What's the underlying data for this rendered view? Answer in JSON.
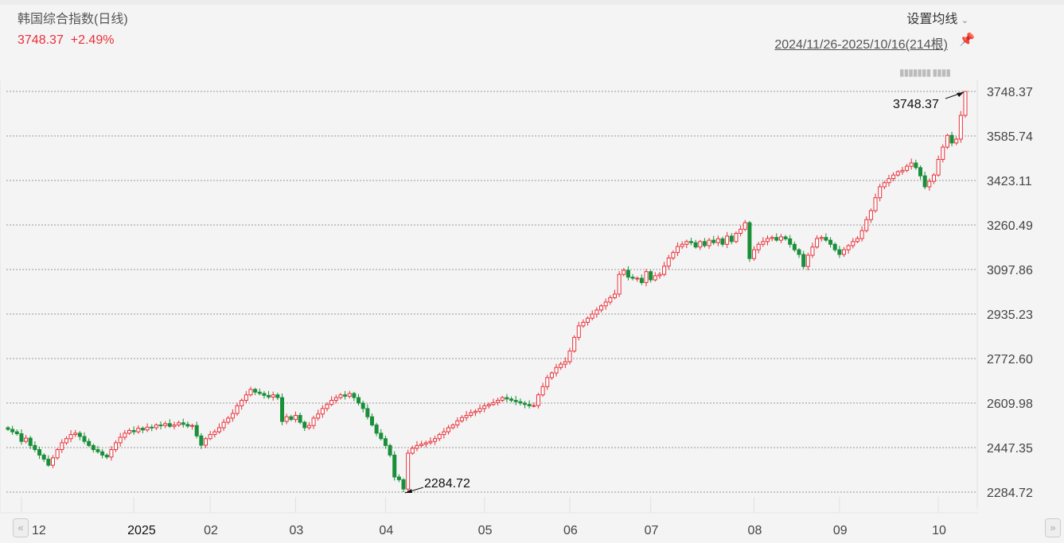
{
  "header": {
    "title": "韩国综合指数(日线)",
    "price": "3748.37",
    "change": "+2.49%",
    "ma_setting": "设置均线",
    "chevron_icon": "chevron-down-icon",
    "range": "2024/11/26-2025/10/16(214根)",
    "pin_icon": "pin-icon"
  },
  "colors": {
    "up": "#e8303a",
    "down": "#1a8f3a",
    "background": "#f4f4f4"
  },
  "nav": {
    "prev": "«",
    "next": "»"
  },
  "chart_data": {
    "type": "candlestick",
    "title": "韩国综合指数(日线)",
    "y_ticks": [
      "3748.37",
      "3585.74",
      "3423.11",
      "3260.49",
      "3097.86",
      "2935.23",
      "2772.60",
      "2609.98",
      "2447.35",
      "2284.72"
    ],
    "ylim": [
      2284.72,
      3748.37
    ],
    "x_ticks": [
      {
        "label": "12",
        "index": 3
      },
      {
        "label": "2025",
        "index": 28
      },
      {
        "label": "02",
        "index": 45
      },
      {
        "label": "03",
        "index": 64
      },
      {
        "label": "04",
        "index": 84
      },
      {
        "label": "05",
        "index": 106
      },
      {
        "label": "06",
        "index": 125
      },
      {
        "label": "07",
        "index": 143
      },
      {
        "label": "08",
        "index": 166
      },
      {
        "label": "09",
        "index": 185
      },
      {
        "label": "10",
        "index": 207
      }
    ],
    "grid": true,
    "annotations": [
      {
        "label": "3748.37",
        "index": 213,
        "value": 3748.37
      },
      {
        "label": "2284.72",
        "index": 88,
        "value": 2284.72
      }
    ],
    "close": [
      2514,
      2505,
      2498,
      2470,
      2482,
      2455,
      2440,
      2420,
      2405,
      2383,
      2410,
      2440,
      2465,
      2480,
      2495,
      2500,
      2488,
      2470,
      2455,
      2440,
      2432,
      2420,
      2413,
      2440,
      2465,
      2485,
      2500,
      2510,
      2505,
      2518,
      2512,
      2522,
      2520,
      2530,
      2528,
      2535,
      2525,
      2530,
      2538,
      2532,
      2526,
      2528,
      2490,
      2456,
      2480,
      2495,
      2505,
      2520,
      2540,
      2555,
      2572,
      2600,
      2620,
      2640,
      2660,
      2650,
      2645,
      2638,
      2632,
      2640,
      2630,
      2543,
      2560,
      2550,
      2565,
      2540,
      2520,
      2528,
      2555,
      2570,
      2590,
      2605,
      2620,
      2630,
      2640,
      2635,
      2645,
      2630,
      2610,
      2590,
      2560,
      2530,
      2500,
      2480,
      2455,
      2420,
      2340,
      2330,
      2296,
      2427,
      2445,
      2455,
      2460,
      2465,
      2470,
      2480,
      2495,
      2505,
      2520,
      2530,
      2545,
      2557,
      2565,
      2575,
      2580,
      2590,
      2600,
      2605,
      2612,
      2620,
      2630,
      2625,
      2620,
      2615,
      2610,
      2605,
      2600,
      2601,
      2640,
      2670,
      2703,
      2720,
      2740,
      2752,
      2761,
      2800,
      2850,
      2892,
      2905,
      2920,
      2935,
      2950,
      2965,
      2979,
      2995,
      3008,
      3080,
      3095,
      3070,
      3066,
      3066,
      3050,
      3090,
      3060,
      3075,
      3080,
      3110,
      3140,
      3160,
      3182,
      3190,
      3200,
      3196,
      3180,
      3200,
      3185,
      3205,
      3196,
      3210,
      3190,
      3220,
      3200,
      3230,
      3245,
      3269,
      3138,
      3170,
      3190,
      3200,
      3211,
      3215,
      3205,
      3217,
      3210,
      3190,
      3170,
      3153,
      3109,
      3150,
      3180,
      3211,
      3215,
      3205,
      3190,
      3170,
      3153,
      3170,
      3185,
      3200,
      3211,
      3240,
      3280,
      3313,
      3360,
      3400,
      3415,
      3430,
      3443,
      3455,
      3460,
      3475,
      3487,
      3470,
      3440,
      3400,
      3420,
      3443,
      3500,
      3545,
      3588,
      3560,
      3574,
      3661,
      3748.37
    ]
  }
}
